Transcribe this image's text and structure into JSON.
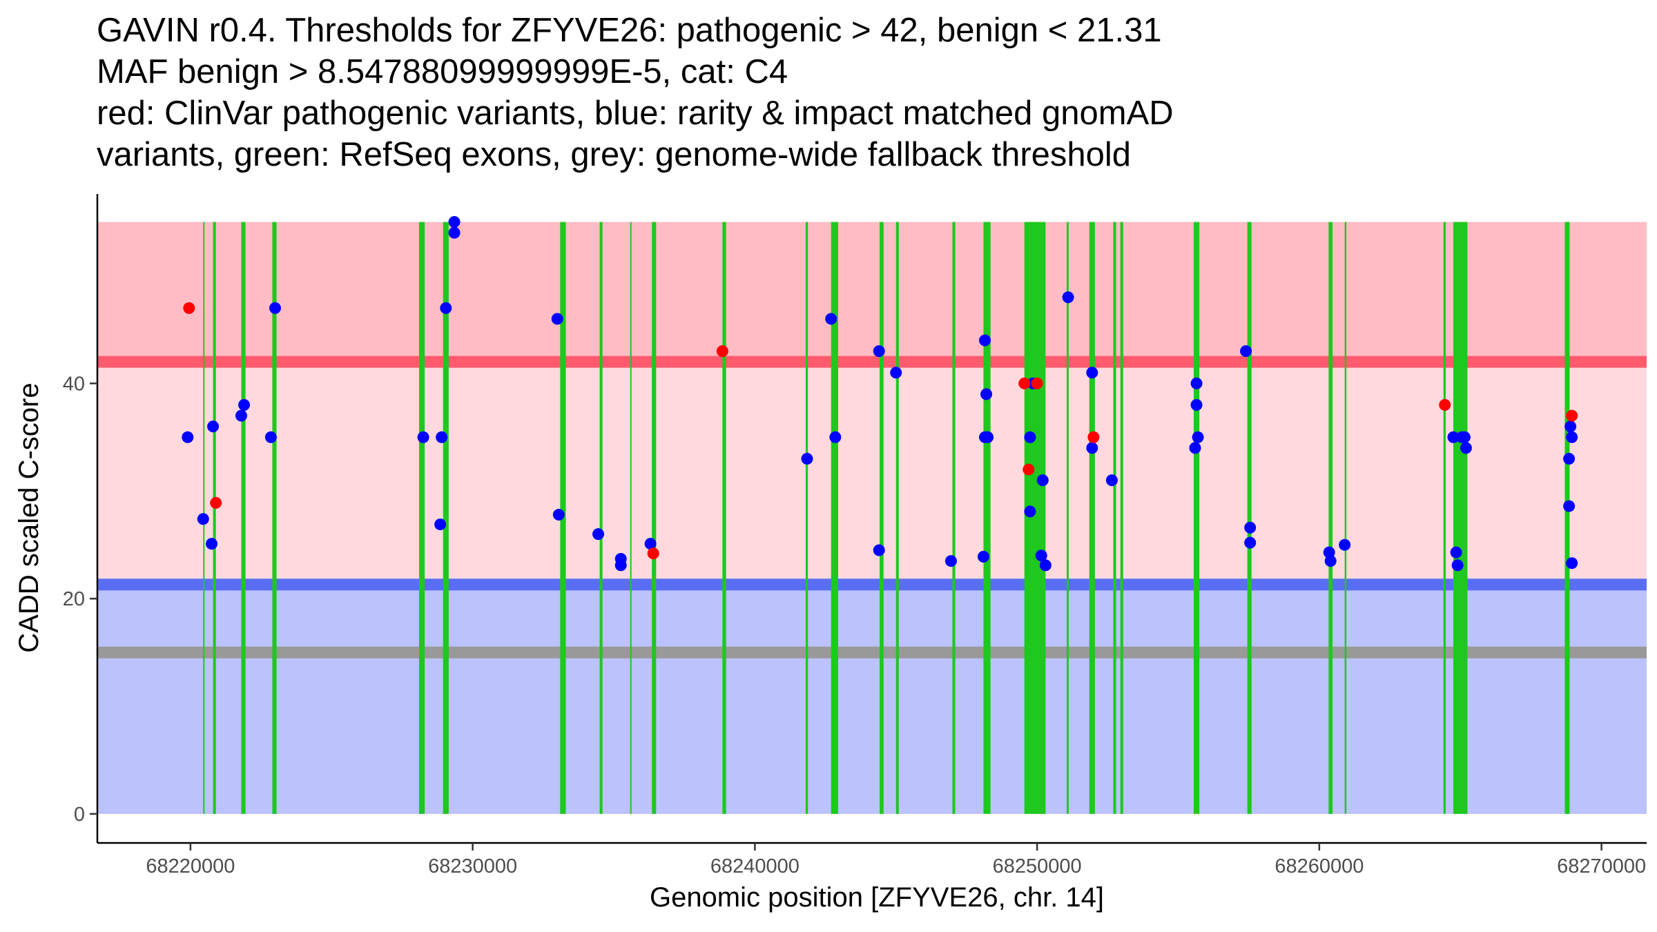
{
  "colors": {
    "pathogenic_zone": "#ffbcc4",
    "middle_zone": "#ffd9de",
    "benign_zone": "#bcc2fb",
    "pathogenic_line": "#ff5a6e",
    "benign_line": "#5a6ef4",
    "fallback_line": "#999999",
    "exon": "#1ec81e",
    "clinvar": "#ff0000",
    "gnomad": "#0000ff"
  },
  "chart_data": {
    "type": "scatter",
    "title_lines": [
      "GAVIN r0.4. Thresholds for ZFYVE26: pathogenic > 42, benign < 21.31",
      "MAF benign > 8.54788099999999E-5, cat: C4",
      "red: ClinVar pathogenic variants, blue: rarity & impact matched gnomAD",
      "variants, green: RefSeq exons, grey: genome-wide fallback threshold"
    ],
    "xlabel": "Genomic position [ZFYVE26, chr. 14]",
    "ylabel": "CADD scaled C-score",
    "xlim": [
      68216700,
      68271600
    ],
    "ylim": [
      -2.7,
      57.6
    ],
    "x_ticks": [
      68220000,
      68230000,
      68240000,
      68250000,
      68260000,
      68270000
    ],
    "x_tick_labels": [
      "68220000",
      "68230000",
      "68240000",
      "68250000",
      "68260000",
      "68270000"
    ],
    "y_ticks": [
      0,
      20,
      40
    ],
    "y_tick_labels": [
      "0",
      "20",
      "40"
    ],
    "zones": {
      "pathogenic": [
        42,
        55
      ],
      "middle": [
        21.31,
        42
      ],
      "benign": [
        0,
        21.31
      ],
      "x_range": [
        68216700,
        68271600
      ]
    },
    "thresholds": {
      "pathogenic": 42,
      "benign": 21.31,
      "fallback": 15
    },
    "exons": [
      [
        68220450,
        68220480
      ],
      [
        68220800,
        68220900
      ],
      [
        68221800,
        68221950
      ],
      [
        68222900,
        68223050
      ],
      [
        68228100,
        68228300
      ],
      [
        68228950,
        68229150
      ],
      [
        68233100,
        68233300
      ],
      [
        68234500,
        68234600
      ],
      [
        68235580,
        68235620
      ],
      [
        68236350,
        68236500
      ],
      [
        68238850,
        68238980
      ],
      [
        68241800,
        68241880
      ],
      [
        68242700,
        68242950
      ],
      [
        68244420,
        68244560
      ],
      [
        68245000,
        68245100
      ],
      [
        68247000,
        68247100
      ],
      [
        68248100,
        68248350
      ],
      [
        68249550,
        68250300
      ],
      [
        68251050,
        68251120
      ],
      [
        68251850,
        68252050
      ],
      [
        68252700,
        68252800
      ],
      [
        68252950,
        68253050
      ],
      [
        68255550,
        68255750
      ],
      [
        68257450,
        68257600
      ],
      [
        68260330,
        68260470
      ],
      [
        68260900,
        68260960
      ],
      [
        68264400,
        68264480
      ],
      [
        68264750,
        68265250
      ],
      [
        68268700,
        68268870
      ]
    ],
    "series": [
      {
        "name": "gnomAD matched variants",
        "color_key": "gnomad",
        "points": [
          [
            68219900,
            35
          ],
          [
            68220450,
            27.4
          ],
          [
            68220750,
            25.1
          ],
          [
            68220800,
            36
          ],
          [
            68221800,
            37
          ],
          [
            68221900,
            38
          ],
          [
            68222850,
            35
          ],
          [
            68223000,
            47
          ],
          [
            68228250,
            35
          ],
          [
            68228850,
            26.9
          ],
          [
            68228900,
            35
          ],
          [
            68229050,
            47
          ],
          [
            68229350,
            55
          ],
          [
            68229350,
            54
          ],
          [
            68233000,
            46
          ],
          [
            68233050,
            27.8
          ],
          [
            68234450,
            26
          ],
          [
            68235250,
            23.7
          ],
          [
            68235250,
            23.1
          ],
          [
            68236300,
            25.1
          ],
          [
            68241850,
            33
          ],
          [
            68242700,
            46
          ],
          [
            68242850,
            35
          ],
          [
            68244400,
            43
          ],
          [
            68244400,
            24.5
          ],
          [
            68245000,
            41
          ],
          [
            68246950,
            23.5
          ],
          [
            68248100,
            23.9
          ],
          [
            68248150,
            44
          ],
          [
            68248200,
            39
          ],
          [
            68248150,
            35
          ],
          [
            68248250,
            35
          ],
          [
            68249750,
            28.1
          ],
          [
            68249750,
            35
          ],
          [
            68249850,
            40
          ],
          [
            68250150,
            24
          ],
          [
            68250200,
            31
          ],
          [
            68250300,
            23.1
          ],
          [
            68251100,
            48
          ],
          [
            68251950,
            41
          ],
          [
            68251950,
            34
          ],
          [
            68252650,
            31
          ],
          [
            68255600,
            34
          ],
          [
            68255650,
            38
          ],
          [
            68255650,
            40
          ],
          [
            68255700,
            35
          ],
          [
            68257400,
            43
          ],
          [
            68257550,
            26.6
          ],
          [
            68257550,
            25.2
          ],
          [
            68260350,
            24.3
          ],
          [
            68260400,
            23.5
          ],
          [
            68260900,
            25
          ],
          [
            68264750,
            35
          ],
          [
            68264850,
            24.3
          ],
          [
            68264900,
            23.1
          ],
          [
            68265050,
            35
          ],
          [
            68265150,
            35
          ],
          [
            68265200,
            34
          ],
          [
            68268850,
            28.6
          ],
          [
            68268850,
            33
          ],
          [
            68268900,
            36
          ],
          [
            68268950,
            35
          ],
          [
            68268950,
            23.3
          ]
        ]
      },
      {
        "name": "ClinVar pathogenic variants",
        "color_key": "clinvar",
        "points": [
          [
            68219950,
            47
          ],
          [
            68220900,
            28.9
          ],
          [
            68236400,
            24.2
          ],
          [
            68238850,
            43
          ],
          [
            68249550,
            40
          ],
          [
            68249700,
            32
          ],
          [
            68250000,
            40
          ],
          [
            68252000,
            35
          ],
          [
            68264450,
            38
          ],
          [
            68268950,
            37
          ]
        ]
      }
    ]
  }
}
